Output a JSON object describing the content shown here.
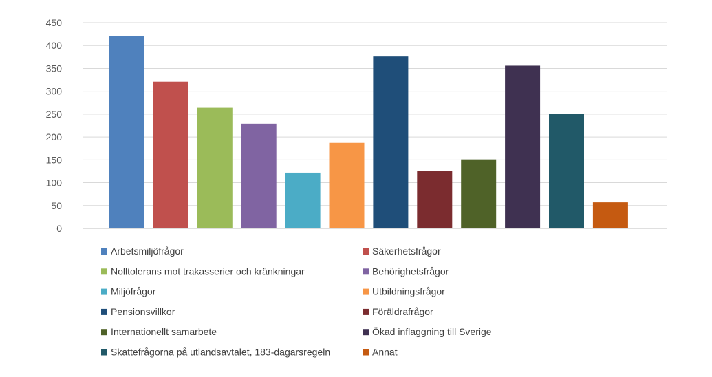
{
  "chart_data": {
    "type": "bar",
    "title": "",
    "xlabel": "",
    "ylabel": "",
    "ylim": [
      0,
      450
    ],
    "yticks": [
      0,
      50,
      100,
      150,
      200,
      250,
      300,
      350,
      400,
      450
    ],
    "grid": true,
    "legend_position": "bottom",
    "categories": [
      "Arbetsmiljöfrågor",
      "Säkerhetsfrågor",
      "Nolltolerans mot trakasserier och kränkningar",
      "Behörighetsfrågor",
      "Miljöfrågor",
      "Utbildningsfrågor",
      "Pensionsvillkor",
      "Föräldrafrågor",
      "Internationellt samarbete",
      "Ökad inflaggning till Sverige",
      "Skattefrågorna på utlandsavtalet, 183-dagarsregeln",
      "Annat"
    ],
    "values": [
      421,
      321,
      264,
      229,
      122,
      187,
      376,
      126,
      151,
      356,
      251,
      57
    ],
    "colors": [
      "#4f81bd",
      "#c0504d",
      "#9bbb59",
      "#8064a2",
      "#4bacc6",
      "#f79646",
      "#1f4e79",
      "#7b2c2f",
      "#4f6228",
      "#3f3151",
      "#215968",
      "#c55a11"
    ]
  }
}
